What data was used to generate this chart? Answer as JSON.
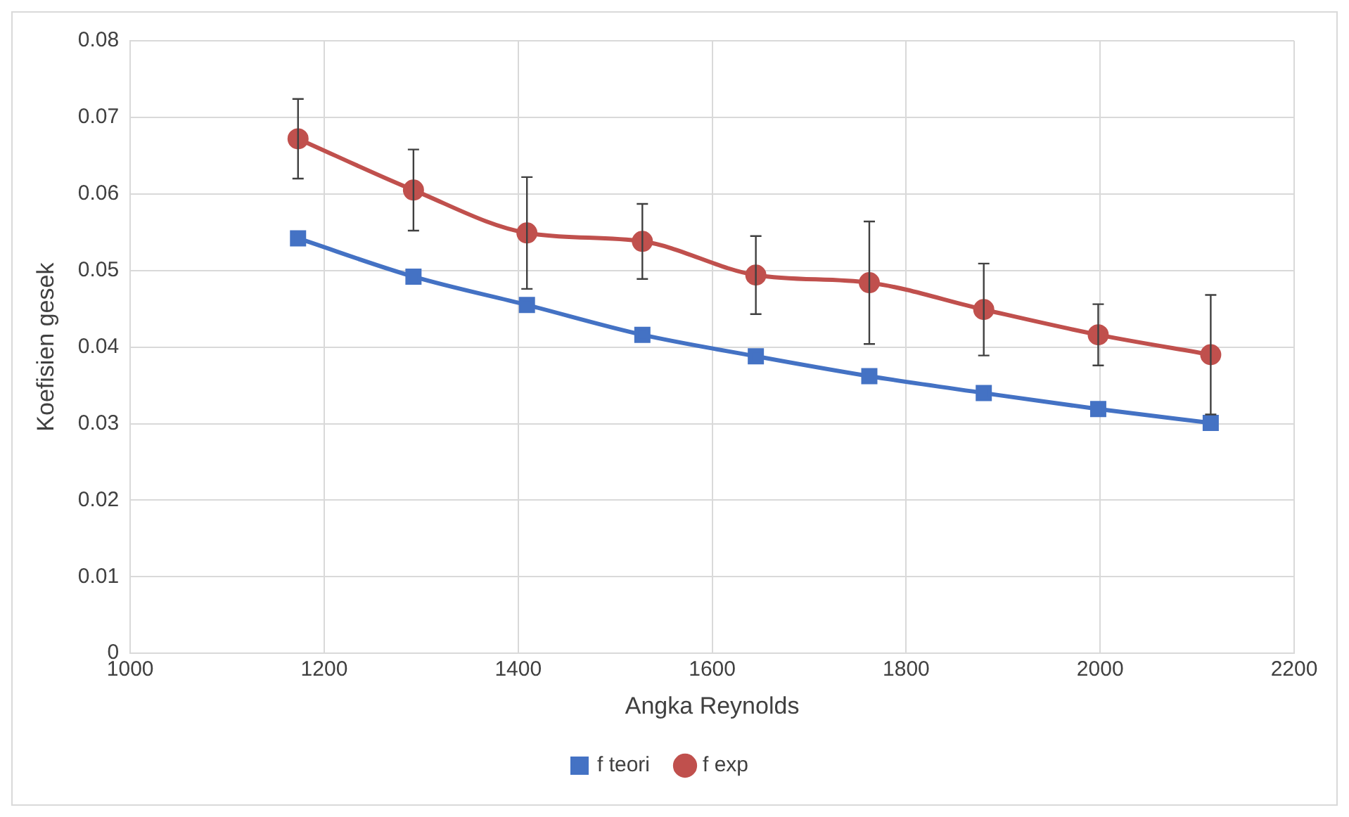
{
  "chart_data": {
    "type": "line",
    "xlabel": "Angka Reynolds",
    "ylabel": "Koefisien gesek",
    "xlim": [
      1000,
      2200
    ],
    "xticks": [
      1000,
      1200,
      1400,
      1600,
      1800,
      2000,
      2200
    ],
    "ylim": [
      0,
      0.08
    ],
    "yticks": [
      0,
      0.01,
      0.02,
      0.03,
      0.04,
      0.05,
      0.06,
      0.07,
      0.08
    ],
    "x": [
      1173,
      1292,
      1409,
      1528,
      1645,
      1762,
      1880,
      1998,
      2114
    ],
    "series": [
      {
        "name": "f teori",
        "color": "#4472c4",
        "marker": "square",
        "values": [
          0.0542,
          0.0492,
          0.0455,
          0.0416,
          0.0388,
          0.0362,
          0.034,
          0.0319,
          0.0301
        ]
      },
      {
        "name": "f exp",
        "color": "#c0504d",
        "marker": "circle",
        "values": [
          0.0672,
          0.0605,
          0.0549,
          0.0538,
          0.0494,
          0.0484,
          0.0449,
          0.0416,
          0.039
        ],
        "errors": [
          0.0052,
          0.0053,
          0.0073,
          0.0049,
          0.0051,
          0.008,
          0.006,
          0.004,
          0.0078
        ]
      }
    ],
    "grid": true,
    "legend": "bottom"
  }
}
